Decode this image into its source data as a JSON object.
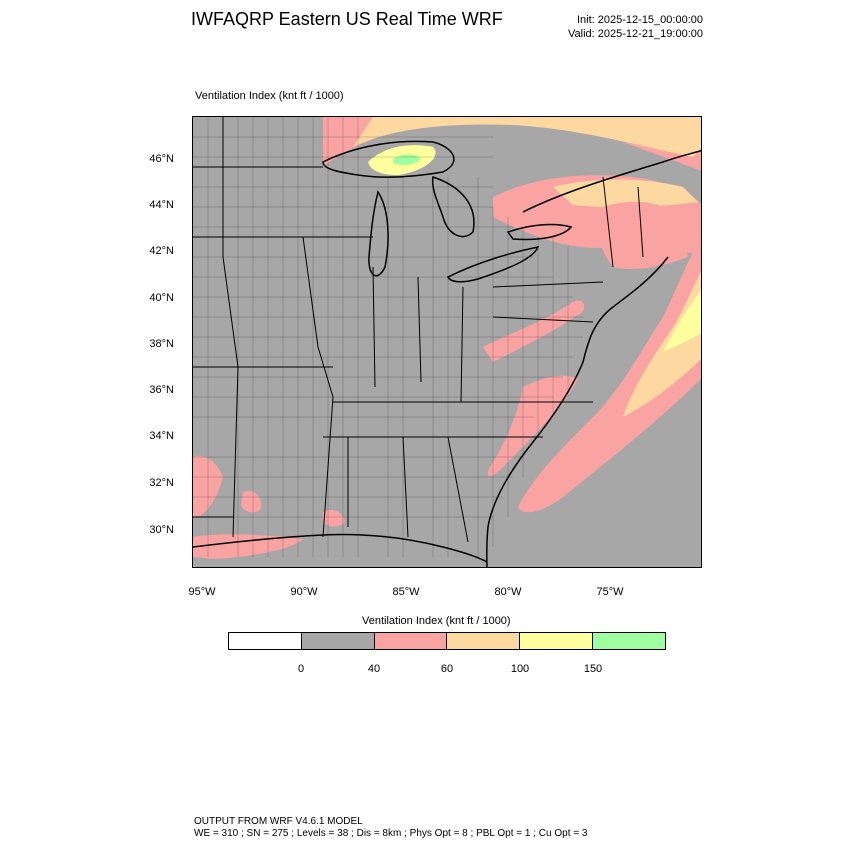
{
  "header": {
    "title": "IWFAQRP Eastern US Real Time WRF",
    "init": "Init: 2025-12-15_00:00:00",
    "valid": "Valid: 2025-12-21_19:00:00"
  },
  "map": {
    "subtitle": "Ventilation Index   (knt ft / 1000)",
    "lat_labels": [
      "46°N",
      "44°N",
      "42°N",
      "40°N",
      "38°N",
      "36°N",
      "34°N",
      "32°N",
      "30°N"
    ],
    "lon_labels": [
      "95°W",
      "90°W",
      "85°W",
      "80°W",
      "75°W"
    ]
  },
  "legend": {
    "title": "Ventilation Index  (knt ft / 1000)",
    "colors": [
      "#ffffff",
      "#a7a7a7",
      "#f9a3a3",
      "#fdd8a0",
      "#ffff9e",
      "#9ffea0"
    ],
    "ticks": [
      "0",
      "40",
      "60",
      "100",
      "150"
    ]
  },
  "footer": {
    "line1": "OUTPUT FROM WRF V4.6.1 MODEL",
    "line2": "WE = 310 ; SN = 275 ; Levels = 38 ; Dis = 8km ; Phys Opt = 8 ; PBL Opt = 1 ; Cu Opt = 3"
  }
}
